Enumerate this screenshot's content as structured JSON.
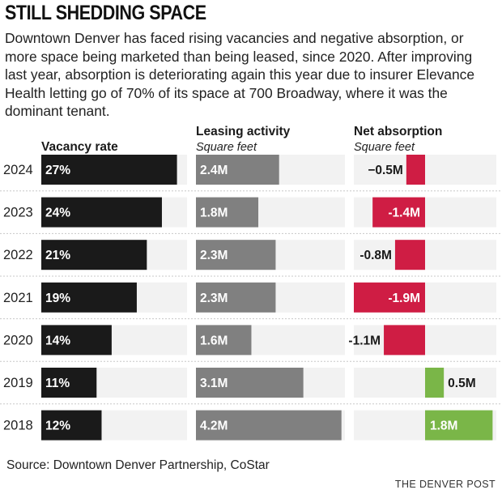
{
  "title": "STILL SHEDDING SPACE",
  "description": "Downtown Denver has faced rising vacancies and negative absorption, or more space being marketed than being leased, since 2020. After improving last year, absorption is deteriorating again this year due to insurer Elevance Health letting go of 70% of its space at 700 Broadway, where it was the dominant tenant.",
  "source": "Source: Downtown Denver Partnership, CoStar",
  "credit": "THE DENVER POST",
  "colors": {
    "vacancy": "#1a1a1a",
    "leasing": "#808080",
    "negative": "#cf1d44",
    "positive": "#7ab648",
    "track": "#f2f2f2",
    "separator": "#c8c8c8"
  },
  "chart_data": {
    "type": "bar",
    "categories": [
      "2024",
      "2023",
      "2022",
      "2021",
      "2020",
      "2019",
      "2018"
    ],
    "panels": [
      {
        "id": "vacancy",
        "title": "Vacancy rate",
        "subtitle": "",
        "unit": "%",
        "xlim": [
          0,
          29
        ],
        "values": [
          27,
          24,
          21,
          19,
          14,
          11,
          12
        ],
        "labels": [
          "27%",
          "24%",
          "21%",
          "19%",
          "14%",
          "11%",
          "12%"
        ]
      },
      {
        "id": "leasing",
        "title": "Leasing activity",
        "subtitle": "Square feet",
        "unit": "M",
        "xlim": [
          0,
          4.3
        ],
        "values": [
          2.4,
          1.8,
          2.3,
          2.3,
          1.6,
          3.1,
          4.2
        ],
        "labels": [
          "2.4M",
          "1.8M",
          "2.3M",
          "2.3M",
          "1.6M",
          "3.1M",
          "4.2M"
        ]
      },
      {
        "id": "absorption",
        "title": "Net absorption",
        "subtitle": "Square feet",
        "unit": "M",
        "xlim": [
          -1.9,
          1.9
        ],
        "values": [
          -0.5,
          -1.4,
          -0.8,
          -1.9,
          -1.1,
          0.5,
          1.8
        ],
        "labels": [
          "−0.5M",
          "-1.4M",
          "-0.8M",
          "-1.9M",
          "-1.1M",
          "0.5M",
          "1.8M"
        ]
      }
    ]
  }
}
